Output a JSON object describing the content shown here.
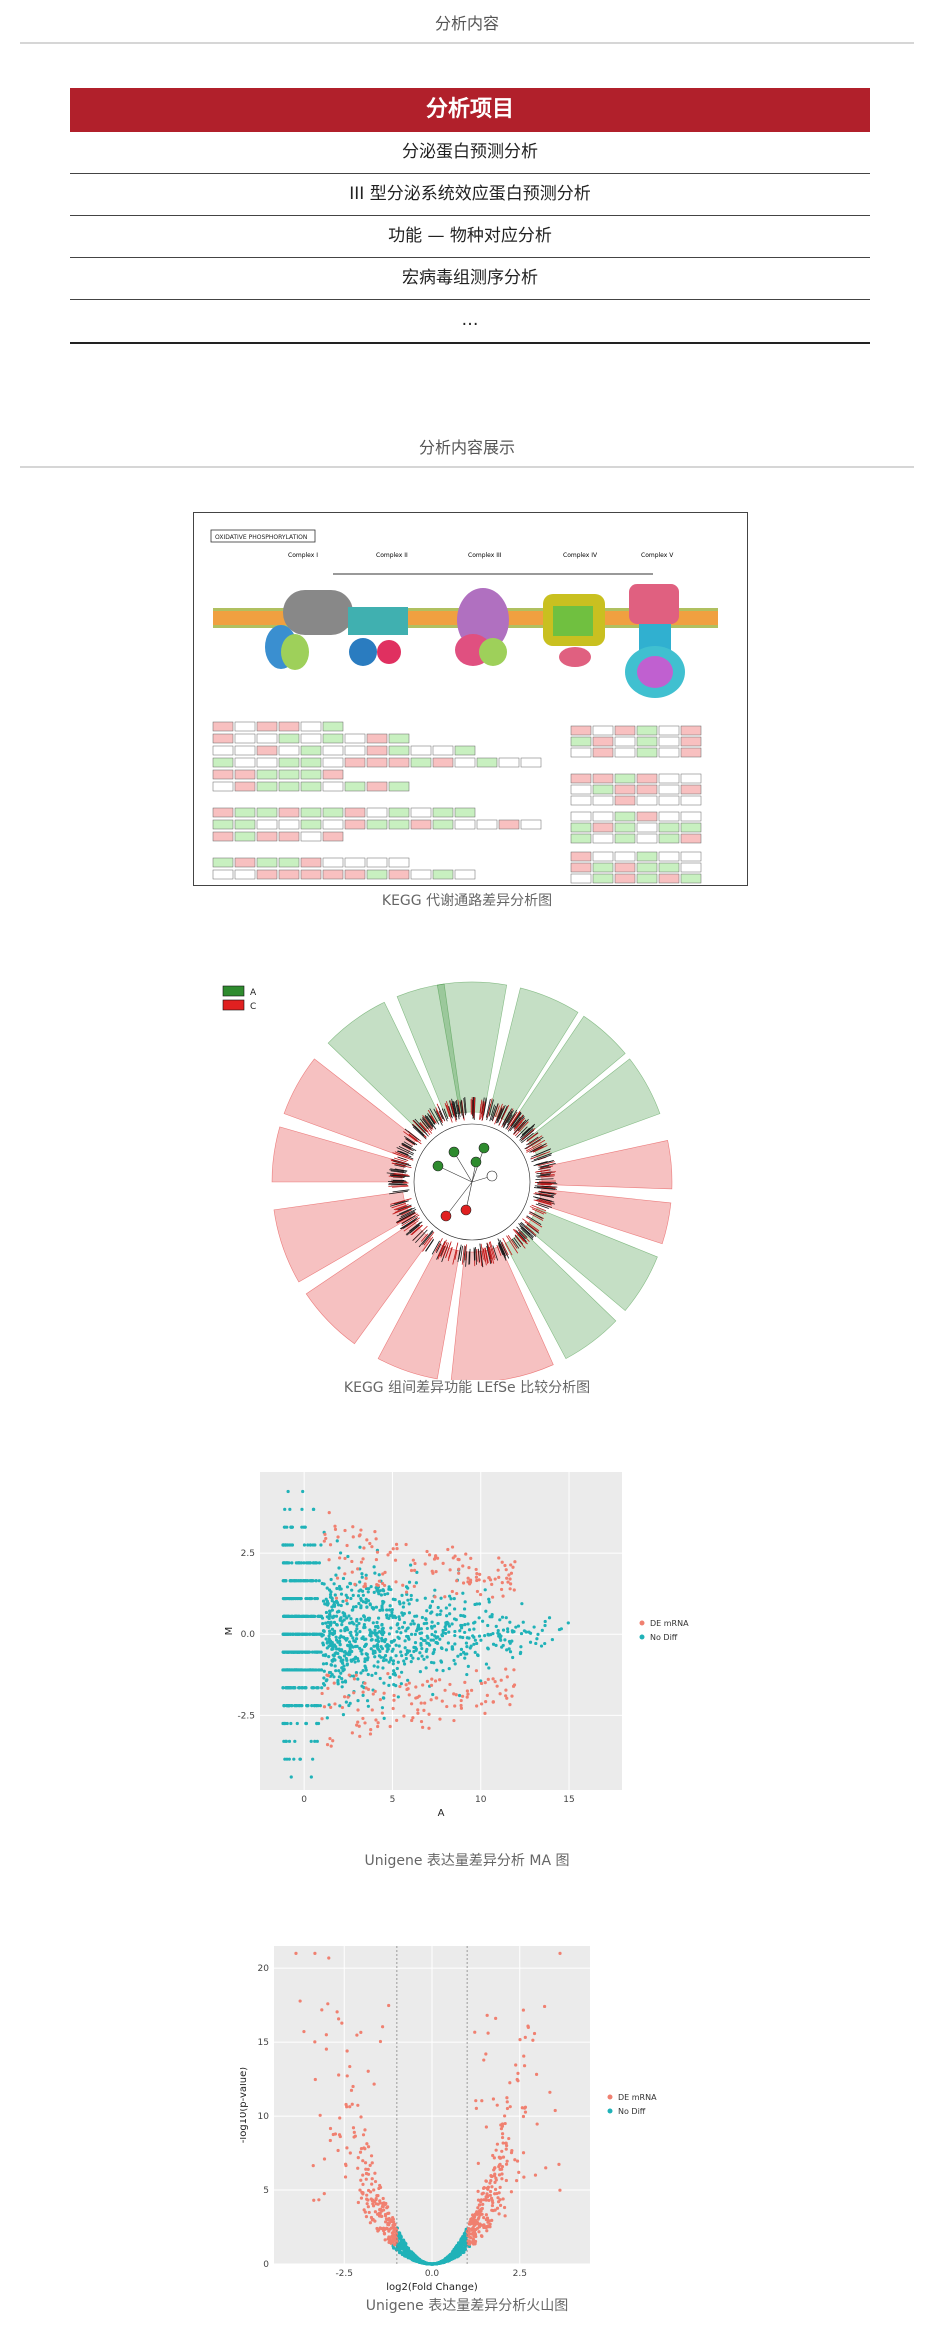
{
  "section1": {
    "title": "分析内容"
  },
  "analysis_table": {
    "header": "分析项目",
    "rows": [
      "分泌蛋白预测分析",
      "III 型分泌系统效应蛋白预测分析",
      "功能 — 物种对应分析",
      "宏病毒组测序分析",
      "…"
    ]
  },
  "section2": {
    "title": "分析内容展示"
  },
  "figures": {
    "kegg_pathway": {
      "caption": "KEGG 代谢通路差异分析图",
      "box_label": "OXIDATIVE PHOSPHORYLATION",
      "complexes": [
        "Complex I",
        "Complex II",
        "Complex III",
        "Complex IV",
        "Complex V"
      ]
    },
    "lefse": {
      "caption": "KEGG 组间差异功能 LEfSe 比较分析图",
      "legend": [
        "A",
        "C"
      ],
      "colors": {
        "A": "#2e8b2e",
        "C": "#e02020"
      }
    },
    "ma_plot": {
      "caption": "Unigene 表达量差异分析 MA 图"
    },
    "volcano": {
      "caption": "Unigene 表达量差异分析火山图"
    }
  },
  "chart_data": [
    {
      "type": "scatter",
      "title": "",
      "xlabel": "A",
      "ylabel": "M",
      "xlim": [
        -2.5,
        18
      ],
      "ylim": [
        -4.8,
        5
      ],
      "xticks": [
        "0",
        "5",
        "10",
        "15"
      ],
      "yticks": [
        "2.5",
        "0.0",
        "-2.5"
      ],
      "grid": true,
      "legend_position": "right",
      "series": [
        {
          "name": "DE mRNA",
          "color": "#f08070"
        },
        {
          "name": "No Diff",
          "color": "#20b2b8"
        }
      ]
    },
    {
      "type": "scatter",
      "title": "",
      "xlabel": "log2(Fold Change)",
      "ylabel": "-log10(p-value)",
      "xlim": [
        -4.5,
        4.5
      ],
      "ylim": [
        0,
        21.5
      ],
      "xticks": [
        "-2.5",
        "0.0",
        "2.5"
      ],
      "yticks": [
        "20",
        "15",
        "10",
        "5",
        "0"
      ],
      "thresholds_x": [
        -1,
        1
      ],
      "grid": true,
      "legend_position": "right",
      "series": [
        {
          "name": "DE mRNA",
          "color": "#f08070"
        },
        {
          "name": "No Diff",
          "color": "#20b2b8"
        }
      ]
    }
  ]
}
